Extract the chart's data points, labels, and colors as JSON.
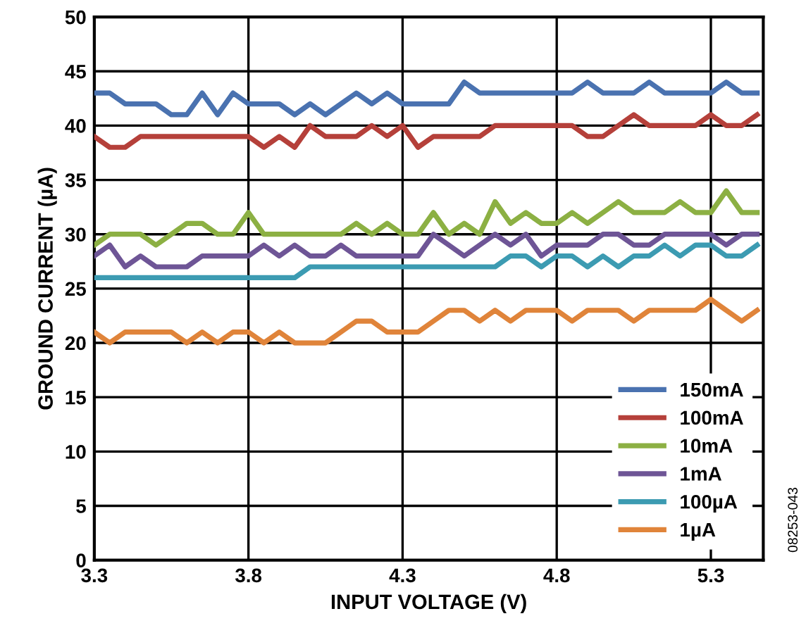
{
  "chart_data": {
    "type": "line",
    "xlabel": "INPUT VOLTAGE (V)",
    "ylabel": "GROUND CURRENT (µA)",
    "x": [
      3.3,
      3.35,
      3.4,
      3.45,
      3.5,
      3.55,
      3.6,
      3.65,
      3.7,
      3.75,
      3.8,
      3.85,
      3.9,
      3.95,
      4.0,
      4.05,
      4.1,
      4.15,
      4.2,
      4.25,
      4.3,
      4.35,
      4.4,
      4.45,
      4.5,
      4.55,
      4.6,
      4.65,
      4.7,
      4.75,
      4.8,
      4.85,
      4.9,
      4.95,
      5.0,
      5.05,
      5.1,
      5.15,
      5.2,
      5.25,
      5.3,
      5.35,
      5.4,
      5.45
    ],
    "series": [
      {
        "name": "150mA",
        "color": "#4a72b0",
        "values": [
          43,
          43,
          42,
          42,
          42,
          41,
          41,
          43,
          41,
          43,
          42,
          42,
          42,
          41,
          42,
          41,
          42,
          43,
          42,
          43,
          42,
          42,
          42,
          42,
          44,
          43,
          43,
          43,
          43,
          43,
          43,
          43,
          44,
          43,
          43,
          43,
          44,
          43,
          43,
          43,
          43,
          44,
          43,
          43
        ]
      },
      {
        "name": "100mA",
        "color": "#b5403a",
        "values": [
          39,
          38,
          38,
          39,
          39,
          39,
          39,
          39,
          39,
          39,
          39,
          38,
          39,
          38,
          40,
          39,
          39,
          39,
          40,
          39,
          40,
          38,
          39,
          39,
          39,
          39,
          40,
          40,
          40,
          40,
          40,
          40,
          39,
          39,
          40,
          41,
          40,
          40,
          40,
          40,
          41,
          40,
          40,
          41
        ]
      },
      {
        "name": "10mA",
        "color": "#8cb043",
        "values": [
          29,
          30,
          30,
          30,
          29,
          30,
          31,
          31,
          30,
          30,
          32,
          30,
          30,
          30,
          30,
          30,
          30,
          31,
          30,
          31,
          30,
          30,
          32,
          30,
          31,
          30,
          33,
          31,
          32,
          31,
          31,
          32,
          31,
          32,
          33,
          32,
          32,
          32,
          33,
          32,
          32,
          34,
          32,
          32
        ]
      },
      {
        "name": "1mA",
        "color": "#6e5596",
        "values": [
          28,
          29,
          27,
          28,
          27,
          27,
          27,
          28,
          28,
          28,
          28,
          29,
          28,
          29,
          28,
          28,
          29,
          28,
          28,
          28,
          28,
          28,
          30,
          29,
          28,
          29,
          30,
          29,
          30,
          28,
          29,
          29,
          29,
          30,
          30,
          29,
          29,
          30,
          30,
          30,
          30,
          29,
          30,
          30
        ]
      },
      {
        "name": "100µA",
        "color": "#3c9bb2",
        "values": [
          26,
          26,
          26,
          26,
          26,
          26,
          26,
          26,
          26,
          26,
          26,
          26,
          26,
          26,
          27,
          27,
          27,
          27,
          27,
          27,
          27,
          27,
          27,
          27,
          27,
          27,
          27,
          28,
          28,
          27,
          28,
          28,
          27,
          28,
          27,
          28,
          28,
          29,
          28,
          29,
          29,
          28,
          28,
          29
        ]
      },
      {
        "name": "1µA",
        "color": "#e0843a",
        "values": [
          21,
          20,
          21,
          21,
          21,
          21,
          20,
          21,
          20,
          21,
          21,
          20,
          21,
          20,
          20,
          20,
          21,
          22,
          22,
          21,
          21,
          21,
          22,
          23,
          23,
          22,
          23,
          22,
          23,
          23,
          23,
          22,
          23,
          23,
          23,
          22,
          23,
          23,
          23,
          23,
          24,
          23,
          22,
          23
        ]
      }
    ],
    "xlim": [
      3.3,
      5.47
    ],
    "xticks": [
      3.3,
      3.8,
      4.3,
      4.8,
      5.3
    ],
    "ylim": [
      0,
      50
    ],
    "yticks": [
      0,
      5,
      10,
      15,
      20,
      25,
      30,
      35,
      40,
      45,
      50
    ],
    "grid": true,
    "legend": "bottom right",
    "marker": "none",
    "line_style": "solid",
    "annotations": [
      "08253-043"
    ]
  }
}
